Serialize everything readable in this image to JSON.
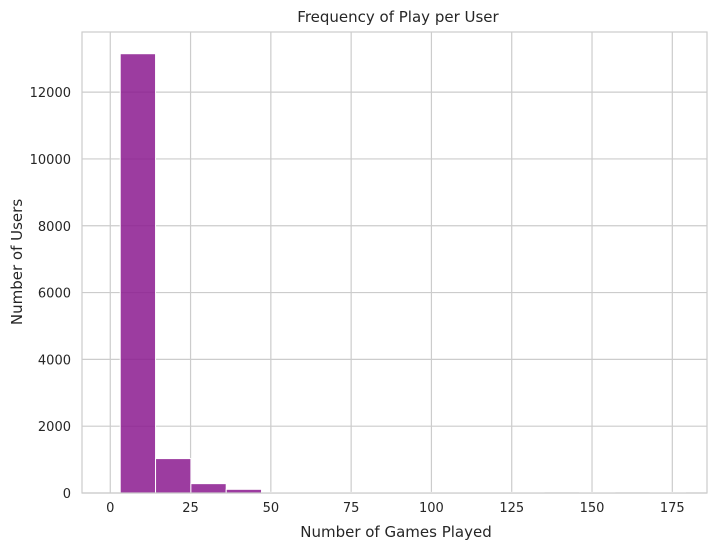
{
  "chart_data": {
    "type": "bar",
    "title": "Frequency of Play per User",
    "xlabel": "Number of Games Played",
    "ylabel": "Number of Users",
    "xlim": [
      -8.8,
      185.8
    ],
    "ylim": [
      0,
      13800
    ],
    "xticks": [
      0,
      25,
      50,
      75,
      100,
      125,
      150,
      175
    ],
    "yticks": [
      0,
      2000,
      4000,
      6000,
      8000,
      10000,
      12000
    ],
    "grid": true,
    "bar_color": "#8b1a8f",
    "bins": [
      {
        "x0": 3.1,
        "x1": 14.1,
        "value": 13150
      },
      {
        "x0": 14.1,
        "x1": 25.1,
        "value": 1030
      },
      {
        "x0": 25.1,
        "x1": 36.1,
        "value": 280
      },
      {
        "x0": 36.1,
        "x1": 47.1,
        "value": 110
      },
      {
        "x0": 47.1,
        "x1": 58.1,
        "value": 20
      },
      {
        "x0": 58.1,
        "x1": 69.1,
        "value": 8
      },
      {
        "x0": 69.1,
        "x1": 80.1,
        "value": 4
      },
      {
        "x0": 80.1,
        "x1": 91.1,
        "value": 3
      },
      {
        "x0": 91.1,
        "x1": 102.1,
        "value": 2
      },
      {
        "x0": 102.1,
        "x1": 113.1,
        "value": 1
      },
      {
        "x0": 113.1,
        "x1": 124.1,
        "value": 1
      },
      {
        "x0": 124.1,
        "x1": 135.1,
        "value": 1
      },
      {
        "x0": 135.1,
        "x1": 146.1,
        "value": 0
      },
      {
        "x0": 146.1,
        "x1": 157.1,
        "value": 1
      },
      {
        "x0": 157.1,
        "x1": 168.1,
        "value": 0
      },
      {
        "x0": 168.1,
        "x1": 179.1,
        "value": 1
      }
    ]
  }
}
